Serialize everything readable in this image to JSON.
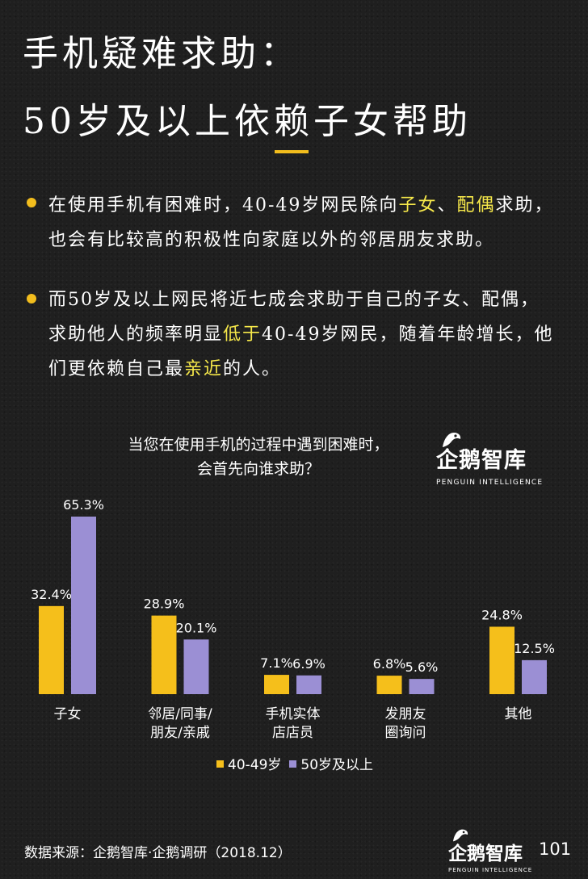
{
  "title": {
    "line1": "手机疑难求助：",
    "line2": "50岁及以上依赖子女帮助"
  },
  "bullets": [
    {
      "parts": [
        {
          "text": "在使用手机有困难时，40-49岁网民除向",
          "highlight": false
        },
        {
          "text": "子女",
          "highlight": true
        },
        {
          "text": "、",
          "highlight": false
        },
        {
          "text": "配偶",
          "highlight": true
        },
        {
          "text": "求助，也会有比较高的积极性向家庭以外的邻居朋友求助。",
          "highlight": false
        }
      ]
    },
    {
      "parts": [
        {
          "text": "而50岁及以上网民将近七成会求助于自己的子女、配偶，求助他人的频率明显",
          "highlight": false
        },
        {
          "text": "低于",
          "highlight": true
        },
        {
          "text": "40-49岁网民，随着年龄增长，他们更依赖自己最",
          "highlight": false
        },
        {
          "text": "亲近",
          "highlight": true
        },
        {
          "text": "的人。",
          "highlight": false
        }
      ]
    }
  ],
  "brand": {
    "name": "企鹅智库",
    "sub": "PENGUIN INTELLIGENCE"
  },
  "chart_data": {
    "type": "bar",
    "title": "当您在使用手机的过程中遇到困难时，\n会首先向谁求助？",
    "categories": [
      "子女",
      "邻居/同事/\n朋友/亲戚",
      "手机实体\n店店员",
      "发朋友\n圈询问",
      "其他"
    ],
    "series": [
      {
        "name": "40-49岁",
        "color": "#f5bf1b",
        "values": [
          32.4,
          28.9,
          7.1,
          6.8,
          24.8
        ],
        "labels": [
          "32.4%",
          "28.9%",
          "7.1%",
          "6.8%",
          "24.8%"
        ]
      },
      {
        "name": "50岁及以上",
        "color": "#9b8fd4",
        "values": [
          65.3,
          20.1,
          6.9,
          5.6,
          12.5
        ],
        "labels": [
          "65.3%",
          "20.1%",
          "6.9%",
          "5.6%",
          "12.5%"
        ]
      }
    ],
    "unit": "%",
    "ylim": [
      0,
      70
    ],
    "grid": false,
    "legend": "bottom-center"
  },
  "colors": {
    "background": "#1f1f1f",
    "accent": "#f2bd1d",
    "highlight_text": "#f6e84a"
  },
  "footer": {
    "source": "数据来源：企鹅智库·企鹅调研（2018.12）",
    "page": "101"
  }
}
